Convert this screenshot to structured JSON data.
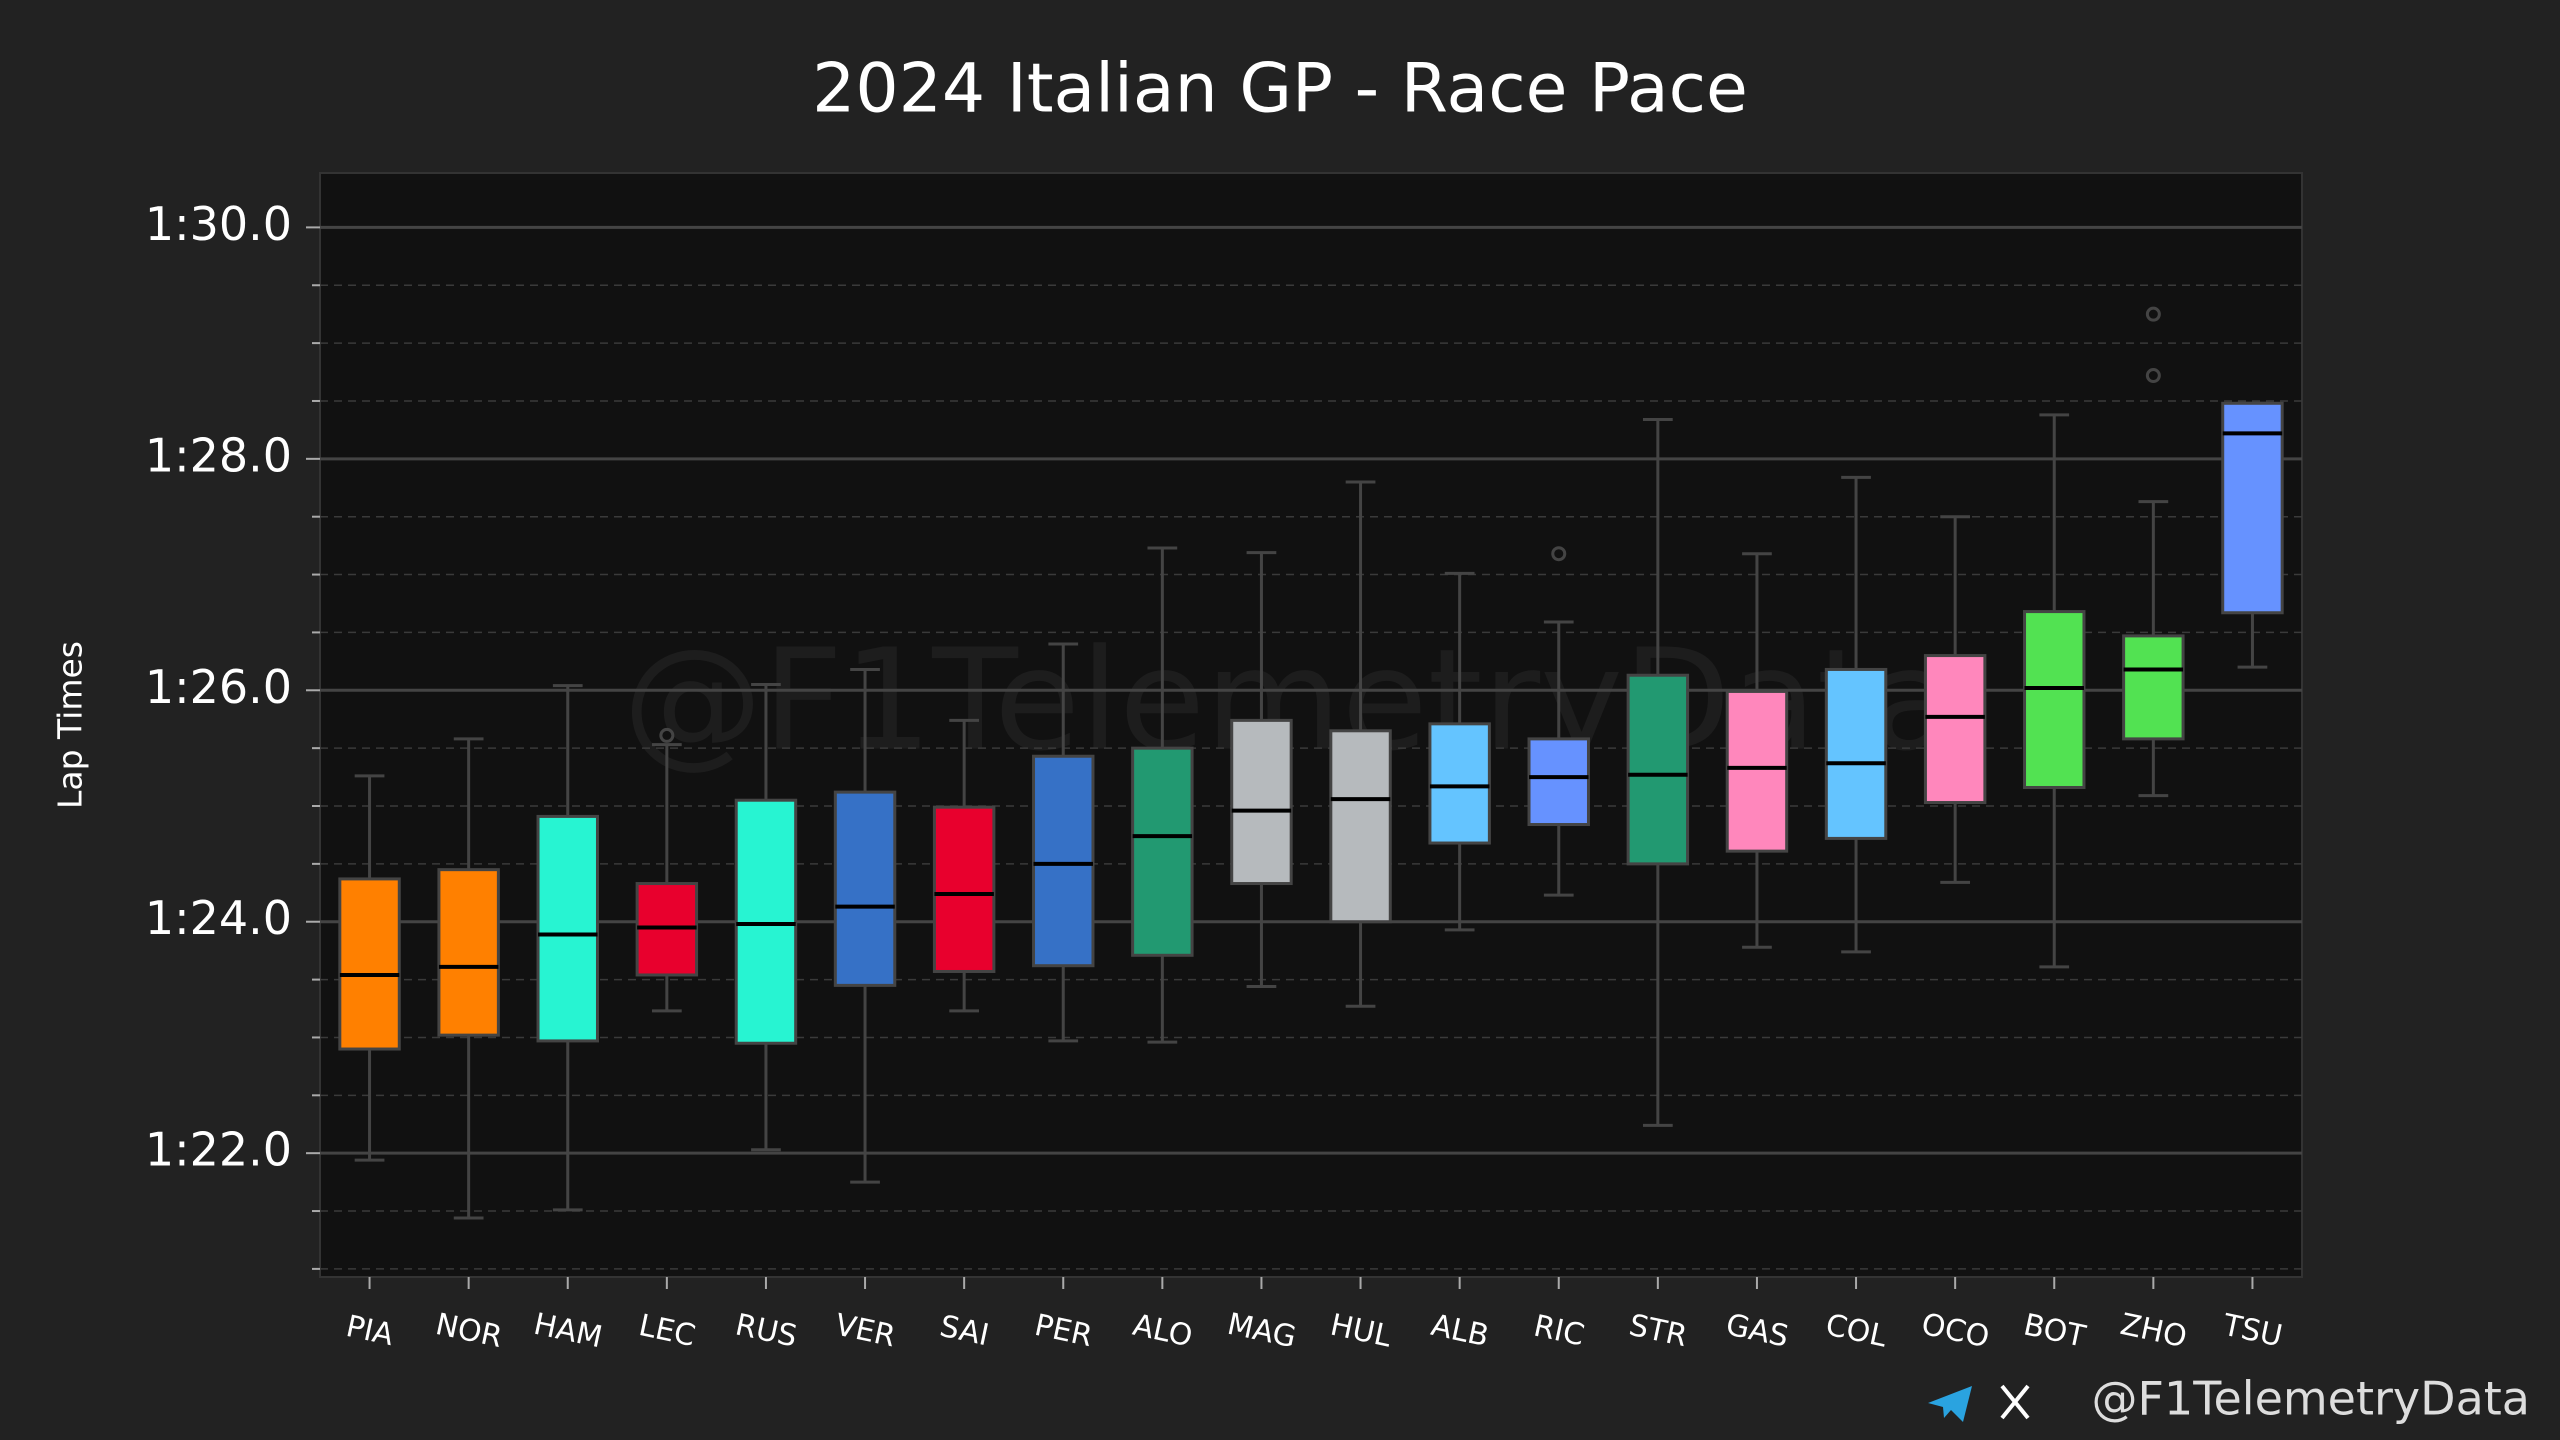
{
  "chart_data": {
    "type": "box",
    "title": "2024 Italian GP - Race Pace",
    "ylabel": "Lap Times",
    "watermark": "@F1TelemetryData",
    "credit": "@F1TelemetryData",
    "categories": [
      "PIA",
      "NOR",
      "HAM",
      "LEC",
      "RUS",
      "VER",
      "SAI",
      "PER",
      "ALO",
      "MAG",
      "HUL",
      "ALB",
      "RIC",
      "STR",
      "GAS",
      "COL",
      "OCO",
      "BOT",
      "ZHO",
      "TSU"
    ],
    "boxes": [
      {
        "whislo": 81.94,
        "q1": 82.9,
        "med": 83.54,
        "q3": 84.37,
        "whishi": 85.26,
        "fliers": [],
        "color": "#ff8000"
      },
      {
        "whislo": 81.44,
        "q1": 83.02,
        "med": 83.61,
        "q3": 84.45,
        "whishi": 85.58,
        "fliers": [],
        "color": "#ff8000"
      },
      {
        "whislo": 81.51,
        "q1": 82.97,
        "med": 83.89,
        "q3": 84.91,
        "whishi": 86.04,
        "fliers": [],
        "color": "#27f4d2"
      },
      {
        "whislo": 83.23,
        "q1": 83.54,
        "med": 83.95,
        "q3": 84.33,
        "whishi": 85.53,
        "fliers": [
          85.61
        ],
        "color": "#e8002d"
      },
      {
        "whislo": 82.03,
        "q1": 82.95,
        "med": 83.98,
        "q3": 85.05,
        "whishi": 86.05,
        "fliers": [],
        "color": "#27f4d2"
      },
      {
        "whislo": 81.75,
        "q1": 83.45,
        "med": 84.13,
        "q3": 85.12,
        "whishi": 86.18,
        "fliers": [],
        "color": "#3671c6"
      },
      {
        "whislo": 83.23,
        "q1": 83.57,
        "med": 84.24,
        "q3": 84.99,
        "whishi": 85.74,
        "fliers": [],
        "color": "#e8002d"
      },
      {
        "whislo": 82.97,
        "q1": 83.62,
        "med": 84.5,
        "q3": 85.43,
        "whishi": 86.4,
        "fliers": [],
        "color": "#3671c6"
      },
      {
        "whislo": 82.96,
        "q1": 83.71,
        "med": 84.74,
        "q3": 85.5,
        "whishi": 87.23,
        "fliers": [],
        "color": "#229971"
      },
      {
        "whislo": 83.44,
        "q1": 84.33,
        "med": 84.96,
        "q3": 85.74,
        "whishi": 87.19,
        "fliers": [],
        "color": "#b6babd"
      },
      {
        "whislo": 83.27,
        "q1": 84.0,
        "med": 85.06,
        "q3": 85.65,
        "whishi": 87.8,
        "fliers": [],
        "color": "#b6babd"
      },
      {
        "whislo": 83.93,
        "q1": 84.68,
        "med": 85.17,
        "q3": 85.71,
        "whishi": 87.01,
        "fliers": [],
        "color": "#64c4ff"
      },
      {
        "whislo": 84.23,
        "q1": 84.84,
        "med": 85.25,
        "q3": 85.58,
        "whishi": 86.59,
        "fliers": [
          87.18
        ],
        "color": "#6692ff"
      },
      {
        "whislo": 82.24,
        "q1": 84.5,
        "med": 85.27,
        "q3": 86.13,
        "whishi": 88.34,
        "fliers": [],
        "color": "#229971"
      },
      {
        "whislo": 83.78,
        "q1": 84.61,
        "med": 85.33,
        "q3": 85.99,
        "whishi": 87.18,
        "fliers": [],
        "color": "#ff87bc"
      },
      {
        "whislo": 83.74,
        "q1": 84.72,
        "med": 85.37,
        "q3": 86.18,
        "whishi": 87.84,
        "fliers": [],
        "color": "#64c4ff"
      },
      {
        "whislo": 84.34,
        "q1": 85.03,
        "med": 85.77,
        "q3": 86.3,
        "whishi": 87.5,
        "fliers": [],
        "color": "#ff87bc"
      },
      {
        "whislo": 83.61,
        "q1": 85.16,
        "med": 86.02,
        "q3": 86.68,
        "whishi": 88.38,
        "fliers": [],
        "color": "#52e252"
      },
      {
        "whislo": 85.09,
        "q1": 85.58,
        "med": 86.18,
        "q3": 86.47,
        "whishi": 87.63,
        "fliers": [
          88.72,
          89.25
        ],
        "color": "#52e252"
      },
      {
        "whislo": 86.2,
        "q1": 86.67,
        "med": 88.22,
        "q3": 88.48,
        "whishi": 88.48,
        "fliers": [],
        "color": "#6692ff"
      }
    ],
    "ylim": [
      80.93,
      90.47
    ],
    "yticks": [
      {
        "value": 82,
        "label": "1:22.0"
      },
      {
        "value": 84,
        "label": "1:24.0"
      },
      {
        "value": 86,
        "label": "1:26.0"
      },
      {
        "value": 88,
        "label": "1:28.0"
      },
      {
        "value": 90,
        "label": "1:30.0"
      }
    ],
    "yminorticks": [
      81,
      81.5,
      82.5,
      83,
      83.5,
      84.5,
      85,
      85.5,
      86.5,
      87,
      87.5,
      88.5,
      89,
      89.5
    ],
    "grid": true
  }
}
